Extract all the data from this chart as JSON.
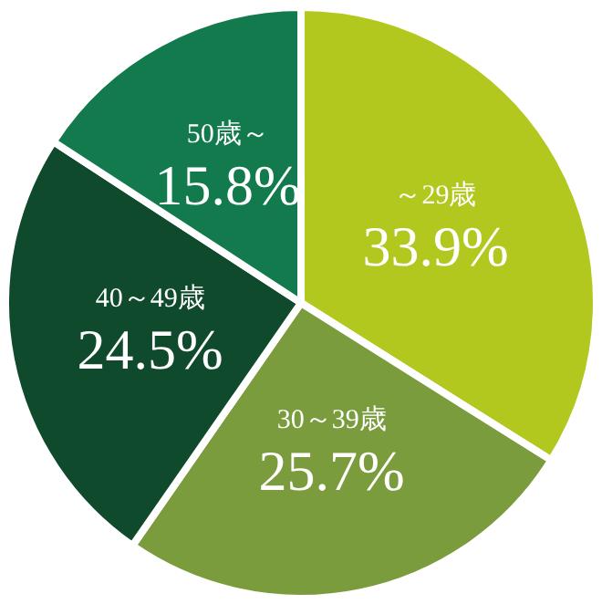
{
  "chart_data": {
    "type": "pie",
    "categories": [
      "～29歳",
      "30～39歳",
      "40～49歳",
      "50歳～"
    ],
    "values": [
      33.9,
      25.7,
      24.5,
      15.8
    ],
    "colors": [
      "#b3c81e",
      "#7a9c3c",
      "#0e4a2b",
      "#127a4c"
    ],
    "value_labels": [
      "33.9%",
      "25.7%",
      "24.5%",
      "15.8%"
    ]
  }
}
